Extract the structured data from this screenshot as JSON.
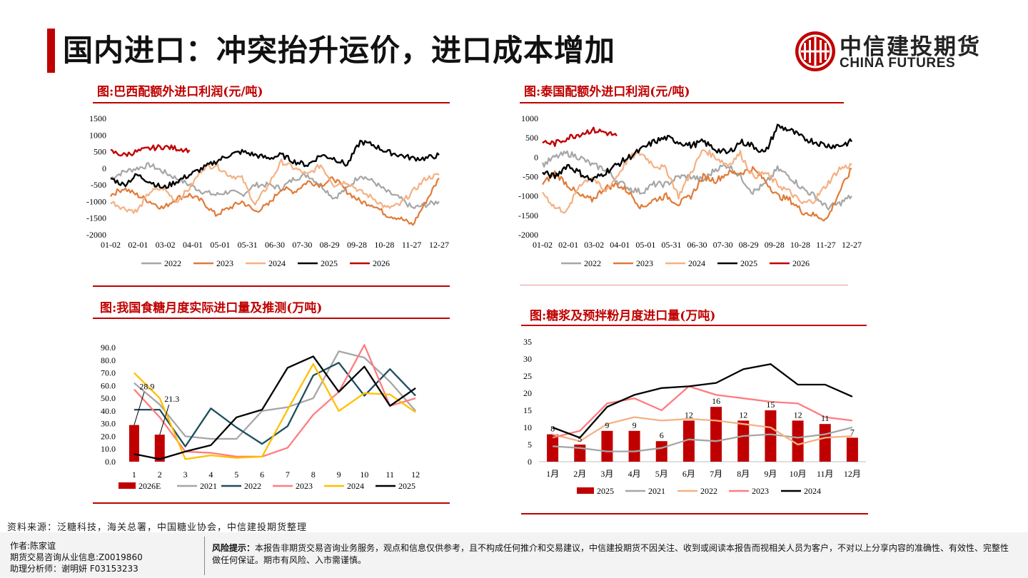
{
  "header": {
    "title": "国内进口：冲突抬升运价，进口成本增加",
    "logo_cn": "中信建投期货",
    "logo_en": "CHINA FUTURES"
  },
  "colors": {
    "accent": "#c00000",
    "s2022": "#a6a6a6",
    "s2023": "#e07b39",
    "s2024": "#f4b183",
    "s2025": "#000000",
    "s2026": "#c00000",
    "yellow": "#ffc000",
    "teal": "#1f4e5f",
    "pink": "#ff7c80",
    "orange_light": "#f4b183"
  },
  "chart_data": [
    {
      "id": "brazil",
      "type": "line",
      "title": "图:巴西配额外进口利润(元/吨)",
      "ylim": [
        -2000,
        1500
      ],
      "yticks": [
        "1500",
        "1000",
        "500",
        "0",
        "-500",
        "-1000",
        "-1500",
        "-2000"
      ],
      "xticks": [
        "01-02",
        "02-01",
        "03-02",
        "04-01",
        "05-01",
        "05-31",
        "06-30",
        "07-30",
        "08-29",
        "09-28",
        "10-28",
        "11-27",
        "12-27"
      ],
      "legend": [
        "2022",
        "2023",
        "2024",
        "2025",
        "2026"
      ],
      "series": [
        {
          "name": "2022",
          "values": [
            -300,
            -100,
            0,
            100,
            -100,
            -300,
            -500,
            -700,
            -800,
            -700,
            -800,
            -500,
            -500,
            -600,
            -300,
            -200,
            -500,
            -900,
            -600,
            -200,
            -400,
            -700,
            -900,
            -1200,
            -1100,
            -1000
          ]
        },
        {
          "name": "2023",
          "values": [
            -800,
            -600,
            -800,
            -1000,
            -1200,
            -900,
            -800,
            -1000,
            -1400,
            -1200,
            -1000,
            -1300,
            -1100,
            -600,
            -700,
            -400,
            -500,
            -300,
            -700,
            -1000,
            -1100,
            -1400,
            -1500,
            -1700,
            -1000,
            -300
          ]
        },
        {
          "name": "2024",
          "values": [
            -1000,
            -1200,
            -1300,
            -700,
            -600,
            -1000,
            -600,
            0,
            100,
            -200,
            -300,
            -1100,
            -500,
            200,
            0,
            -200,
            100,
            -500,
            -400,
            -700,
            -900,
            -1200,
            -1100,
            -700,
            -300,
            -200
          ]
        },
        {
          "name": "2025",
          "values": [
            -300,
            -500,
            -200,
            -400,
            -600,
            -400,
            -200,
            0,
            200,
            400,
            500,
            400,
            300,
            400,
            200,
            100,
            400,
            300,
            100,
            800,
            700,
            500,
            400,
            300,
            300,
            400
          ]
        },
        {
          "name": "2026",
          "values": [
            500,
            400,
            500,
            600,
            650,
            600,
            550
          ]
        }
      ]
    },
    {
      "id": "thailand",
      "type": "line",
      "title": "图:泰国配额外进口利润(元/吨)",
      "ylim": [
        -2000,
        1000
      ],
      "yticks": [
        "1000",
        "500",
        "0",
        "-500",
        "-1000",
        "-1500",
        "-2000"
      ],
      "xticks": [
        "01-02",
        "02-01",
        "03-02",
        "04-01",
        "05-01",
        "05-31",
        "06-30",
        "07-30",
        "08-29",
        "09-28",
        "10-28",
        "11-27",
        "12-27"
      ],
      "legend": [
        "2022",
        "2023",
        "2024",
        "2025",
        "2026"
      ],
      "series": [
        {
          "name": "2022",
          "values": [
            -200,
            0,
            100,
            0,
            -200,
            -300,
            -600,
            -800,
            -900,
            -700,
            -700,
            -500,
            -500,
            -600,
            -300,
            -200,
            -500,
            -900,
            -700,
            -300,
            -500,
            -800,
            -1000,
            -1300,
            -1200,
            -1000
          ]
        },
        {
          "name": "2023",
          "values": [
            -700,
            -400,
            -700,
            -1000,
            -1100,
            -800,
            -700,
            -900,
            -1300,
            -1100,
            -1000,
            -1200,
            -1000,
            -500,
            -600,
            -400,
            -400,
            -300,
            -600,
            -1000,
            -1100,
            -1400,
            -1500,
            -1600,
            -900,
            -300
          ]
        },
        {
          "name": "2024",
          "values": [
            -900,
            -1300,
            -1400,
            -700,
            -500,
            -900,
            -500,
            0,
            100,
            -200,
            -300,
            -1000,
            -400,
            200,
            0,
            -200,
            100,
            -500,
            -400,
            -700,
            -900,
            -1200,
            -1100,
            -700,
            -300,
            -200
          ]
        },
        {
          "name": "2025",
          "values": [
            -400,
            -500,
            -200,
            -400,
            -600,
            -400,
            -200,
            0,
            200,
            400,
            500,
            400,
            300,
            400,
            200,
            100,
            400,
            300,
            100,
            800,
            700,
            500,
            400,
            300,
            300,
            400
          ]
        },
        {
          "name": "2026",
          "values": [
            400,
            350,
            500,
            600,
            700,
            650,
            550
          ]
        }
      ]
    },
    {
      "id": "monthly_imports",
      "type": "bar+line",
      "title": "图:我国食糖月度实际进口量及推测(万吨)",
      "categories": [
        "1",
        "2",
        "3",
        "4",
        "5",
        "6",
        "7",
        "8",
        "9",
        "10",
        "11",
        "12"
      ],
      "ylim": [
        0,
        90
      ],
      "yticks": [
        "90.0",
        "80.0",
        "70.0",
        "60.0",
        "50.0",
        "40.0",
        "30.0",
        "20.0",
        "10.0",
        "0.0"
      ],
      "legend": [
        "2026E",
        "2021",
        "2022",
        "2023",
        "2024",
        "2025"
      ],
      "bars": {
        "name": "2026E",
        "values": [
          28.9,
          21.3
        ],
        "labels": [
          "28.9",
          "21.3"
        ]
      },
      "series": [
        {
          "name": "2021",
          "values": [
            62,
            45,
            20,
            18,
            18,
            40,
            43,
            50,
            87,
            82,
            63,
            40
          ]
        },
        {
          "name": "2022",
          "values": [
            41,
            41,
            12,
            42,
            27,
            14,
            28,
            68,
            78,
            52,
            73,
            52
          ]
        },
        {
          "name": "2023",
          "values": [
            57,
            35,
            8,
            7,
            4,
            4,
            11,
            37,
            55,
            92,
            44,
            50
          ]
        },
        {
          "name": "2024",
          "values": [
            70,
            50,
            2,
            5,
            3,
            4,
            41,
            77,
            40,
            54,
            53,
            39
          ]
        },
        {
          "name": "2025",
          "values": [
            6,
            2,
            8,
            13,
            35,
            41,
            74,
            83,
            55,
            75,
            44,
            58
          ]
        }
      ]
    },
    {
      "id": "syrup_imports",
      "type": "bar+line",
      "title": "图:糖浆及预拌粉月度进口量(万吨)",
      "categories": [
        "1月",
        "2月",
        "3月",
        "4月",
        "5月",
        "6月",
        "7月",
        "8月",
        "9月",
        "10月",
        "11月",
        "12月"
      ],
      "ylim": [
        0,
        35
      ],
      "yticks": [
        "35",
        "30",
        "25",
        "20",
        "15",
        "10",
        "5",
        "0"
      ],
      "legend": [
        "2025",
        "2021",
        "2022",
        "2023",
        "2024"
      ],
      "bars": {
        "name": "2025",
        "values": [
          8,
          5,
          9,
          9,
          6,
          12,
          16,
          12,
          15,
          12,
          11,
          7
        ],
        "labels": [
          "8",
          "5",
          "9",
          "9",
          "6",
          "12",
          "16",
          "12",
          "15",
          "12",
          "11",
          "7"
        ]
      },
      "series": [
        {
          "name": "2021",
          "values": [
            4.5,
            4,
            3,
            3,
            4,
            6.5,
            6,
            7.5,
            8,
            7,
            8,
            10
          ]
        },
        {
          "name": "2022",
          "values": [
            8,
            6,
            11,
            13,
            12,
            12.5,
            12,
            11,
            10,
            5,
            7,
            7.5
          ]
        },
        {
          "name": "2023",
          "values": [
            7,
            9,
            17,
            18.5,
            15,
            22,
            19.5,
            18.5,
            17.5,
            17,
            13,
            12
          ]
        },
        {
          "name": "2024",
          "values": [
            10,
            7,
            16,
            19.5,
            21.5,
            22,
            23,
            27,
            28.5,
            22.5,
            22.5,
            19
          ]
        }
      ]
    }
  ],
  "source": "资料来源：泛糖科技，海关总署，中国糖业协会，中信建投期货整理",
  "footer": {
    "author": "作者:陈家谊",
    "license": "期货交易咨询从业信息:Z0019860",
    "assistant": "助理分析师：谢明妍 F03153233",
    "risk_label": "风险提示：",
    "risk_text": "本报告非期货交易咨询业务服务，观点和信息仅供参考，且不构成任何推介和交易建议，中信建投期货不因关注、收到或阅读本报告而视相关人员为客户，不对以上分享内容的准确性、有效性、完整性做任何保证。期市有风险、入市需谨慎。"
  }
}
